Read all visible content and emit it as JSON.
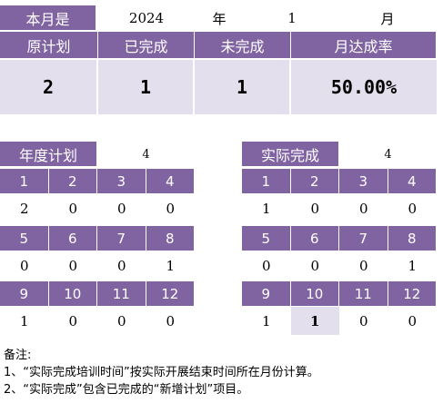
{
  "top": {
    "month_label": "本月是",
    "year": "2024",
    "year_unit": "年",
    "month": "1",
    "month_unit": "月"
  },
  "summary": {
    "headers": [
      "原计划",
      "已完成",
      "未完成",
      "月达成率"
    ],
    "values": [
      "2",
      "1",
      "1",
      "50.00%"
    ]
  },
  "annual": {
    "title": "年度计划",
    "total": "4",
    "rows": [
      {
        "months": [
          "1",
          "2",
          "3",
          "4"
        ],
        "values": [
          "2",
          "0",
          "0",
          "0"
        ]
      },
      {
        "months": [
          "5",
          "6",
          "7",
          "8"
        ],
        "values": [
          "0",
          "0",
          "0",
          "1"
        ]
      },
      {
        "months": [
          "9",
          "10",
          "11",
          "12"
        ],
        "values": [
          "1",
          "0",
          "0",
          "0"
        ]
      }
    ]
  },
  "actual": {
    "title": "实际完成",
    "total": "4",
    "rows": [
      {
        "months": [
          "1",
          "2",
          "3",
          "4"
        ],
        "values": [
          "1",
          "0",
          "0",
          "0"
        ]
      },
      {
        "months": [
          "5",
          "6",
          "7",
          "8"
        ],
        "values": [
          "0",
          "0",
          "0",
          "1"
        ]
      },
      {
        "months": [
          "9",
          "10",
          "11",
          "12"
        ],
        "values": [
          "1",
          "1",
          "0",
          "0"
        ]
      }
    ],
    "highlight": {
      "row": 2,
      "col": 1
    }
  },
  "notes": [
    "备注:",
    "1、“实际完成培训时间”按实际开展结束时间所在月份计算。",
    "2、“实际完成”包含已完成的“新增计划”项目。"
  ],
  "colors": {
    "header": "#8064a2",
    "light": "#e4dfec",
    "header_text": "#ffffff"
  }
}
